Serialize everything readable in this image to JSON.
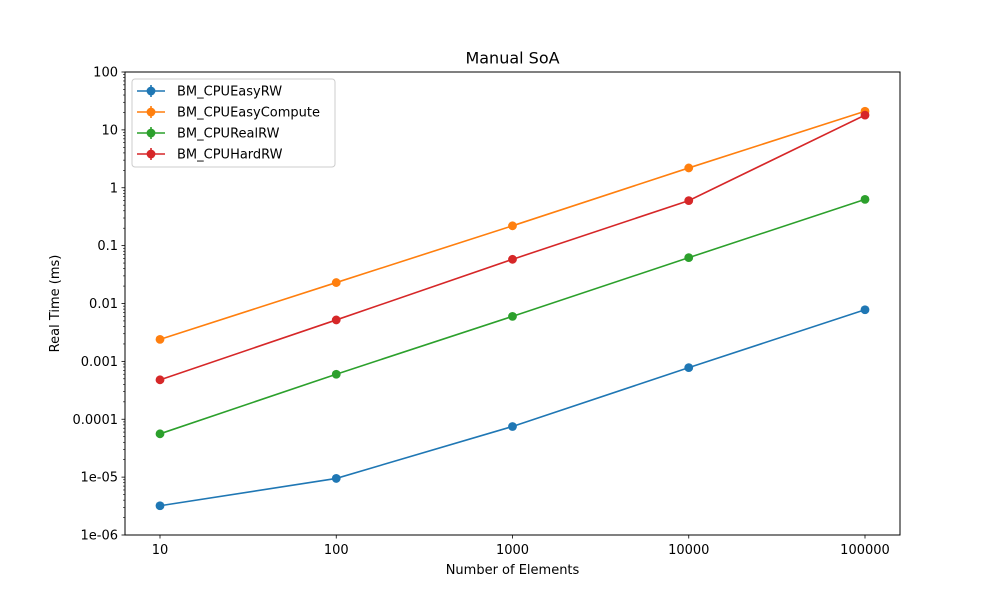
{
  "chart_data": {
    "type": "line",
    "title": "Manual SoA",
    "xlabel": "Number of Elements",
    "ylabel": "Real Time (ms)",
    "x_scale": "log",
    "y_scale": "log",
    "x": [
      10,
      100,
      1000,
      10000,
      100000
    ],
    "x_tick_labels": [
      "10",
      "100",
      "1000",
      "10000",
      "100000"
    ],
    "y_tick_labels": [
      "1e-06",
      "1e-05",
      "0.0001",
      "0.001",
      "0.01",
      "0.1",
      "1",
      "10",
      "100"
    ],
    "ylim": [
      1e-06,
      100
    ],
    "grid": false,
    "legend_position": "top-left",
    "series": [
      {
        "name": "BM_CPUEasyRW",
        "color": "#1f77b4",
        "values": [
          3.2e-06,
          9.5e-06,
          7.5e-05,
          0.00078,
          0.0078
        ]
      },
      {
        "name": "BM_CPUEasyCompute",
        "color": "#ff7f0e",
        "values": [
          0.0024,
          0.023,
          0.22,
          2.2,
          21
        ]
      },
      {
        "name": "BM_CPURealRW",
        "color": "#2ca02c",
        "values": [
          5.6e-05,
          0.0006,
          0.006,
          0.062,
          0.63
        ]
      },
      {
        "name": "BM_CPUHardRW",
        "color": "#d62728",
        "values": [
          0.00048,
          0.0052,
          0.058,
          0.6,
          18
        ]
      }
    ]
  }
}
